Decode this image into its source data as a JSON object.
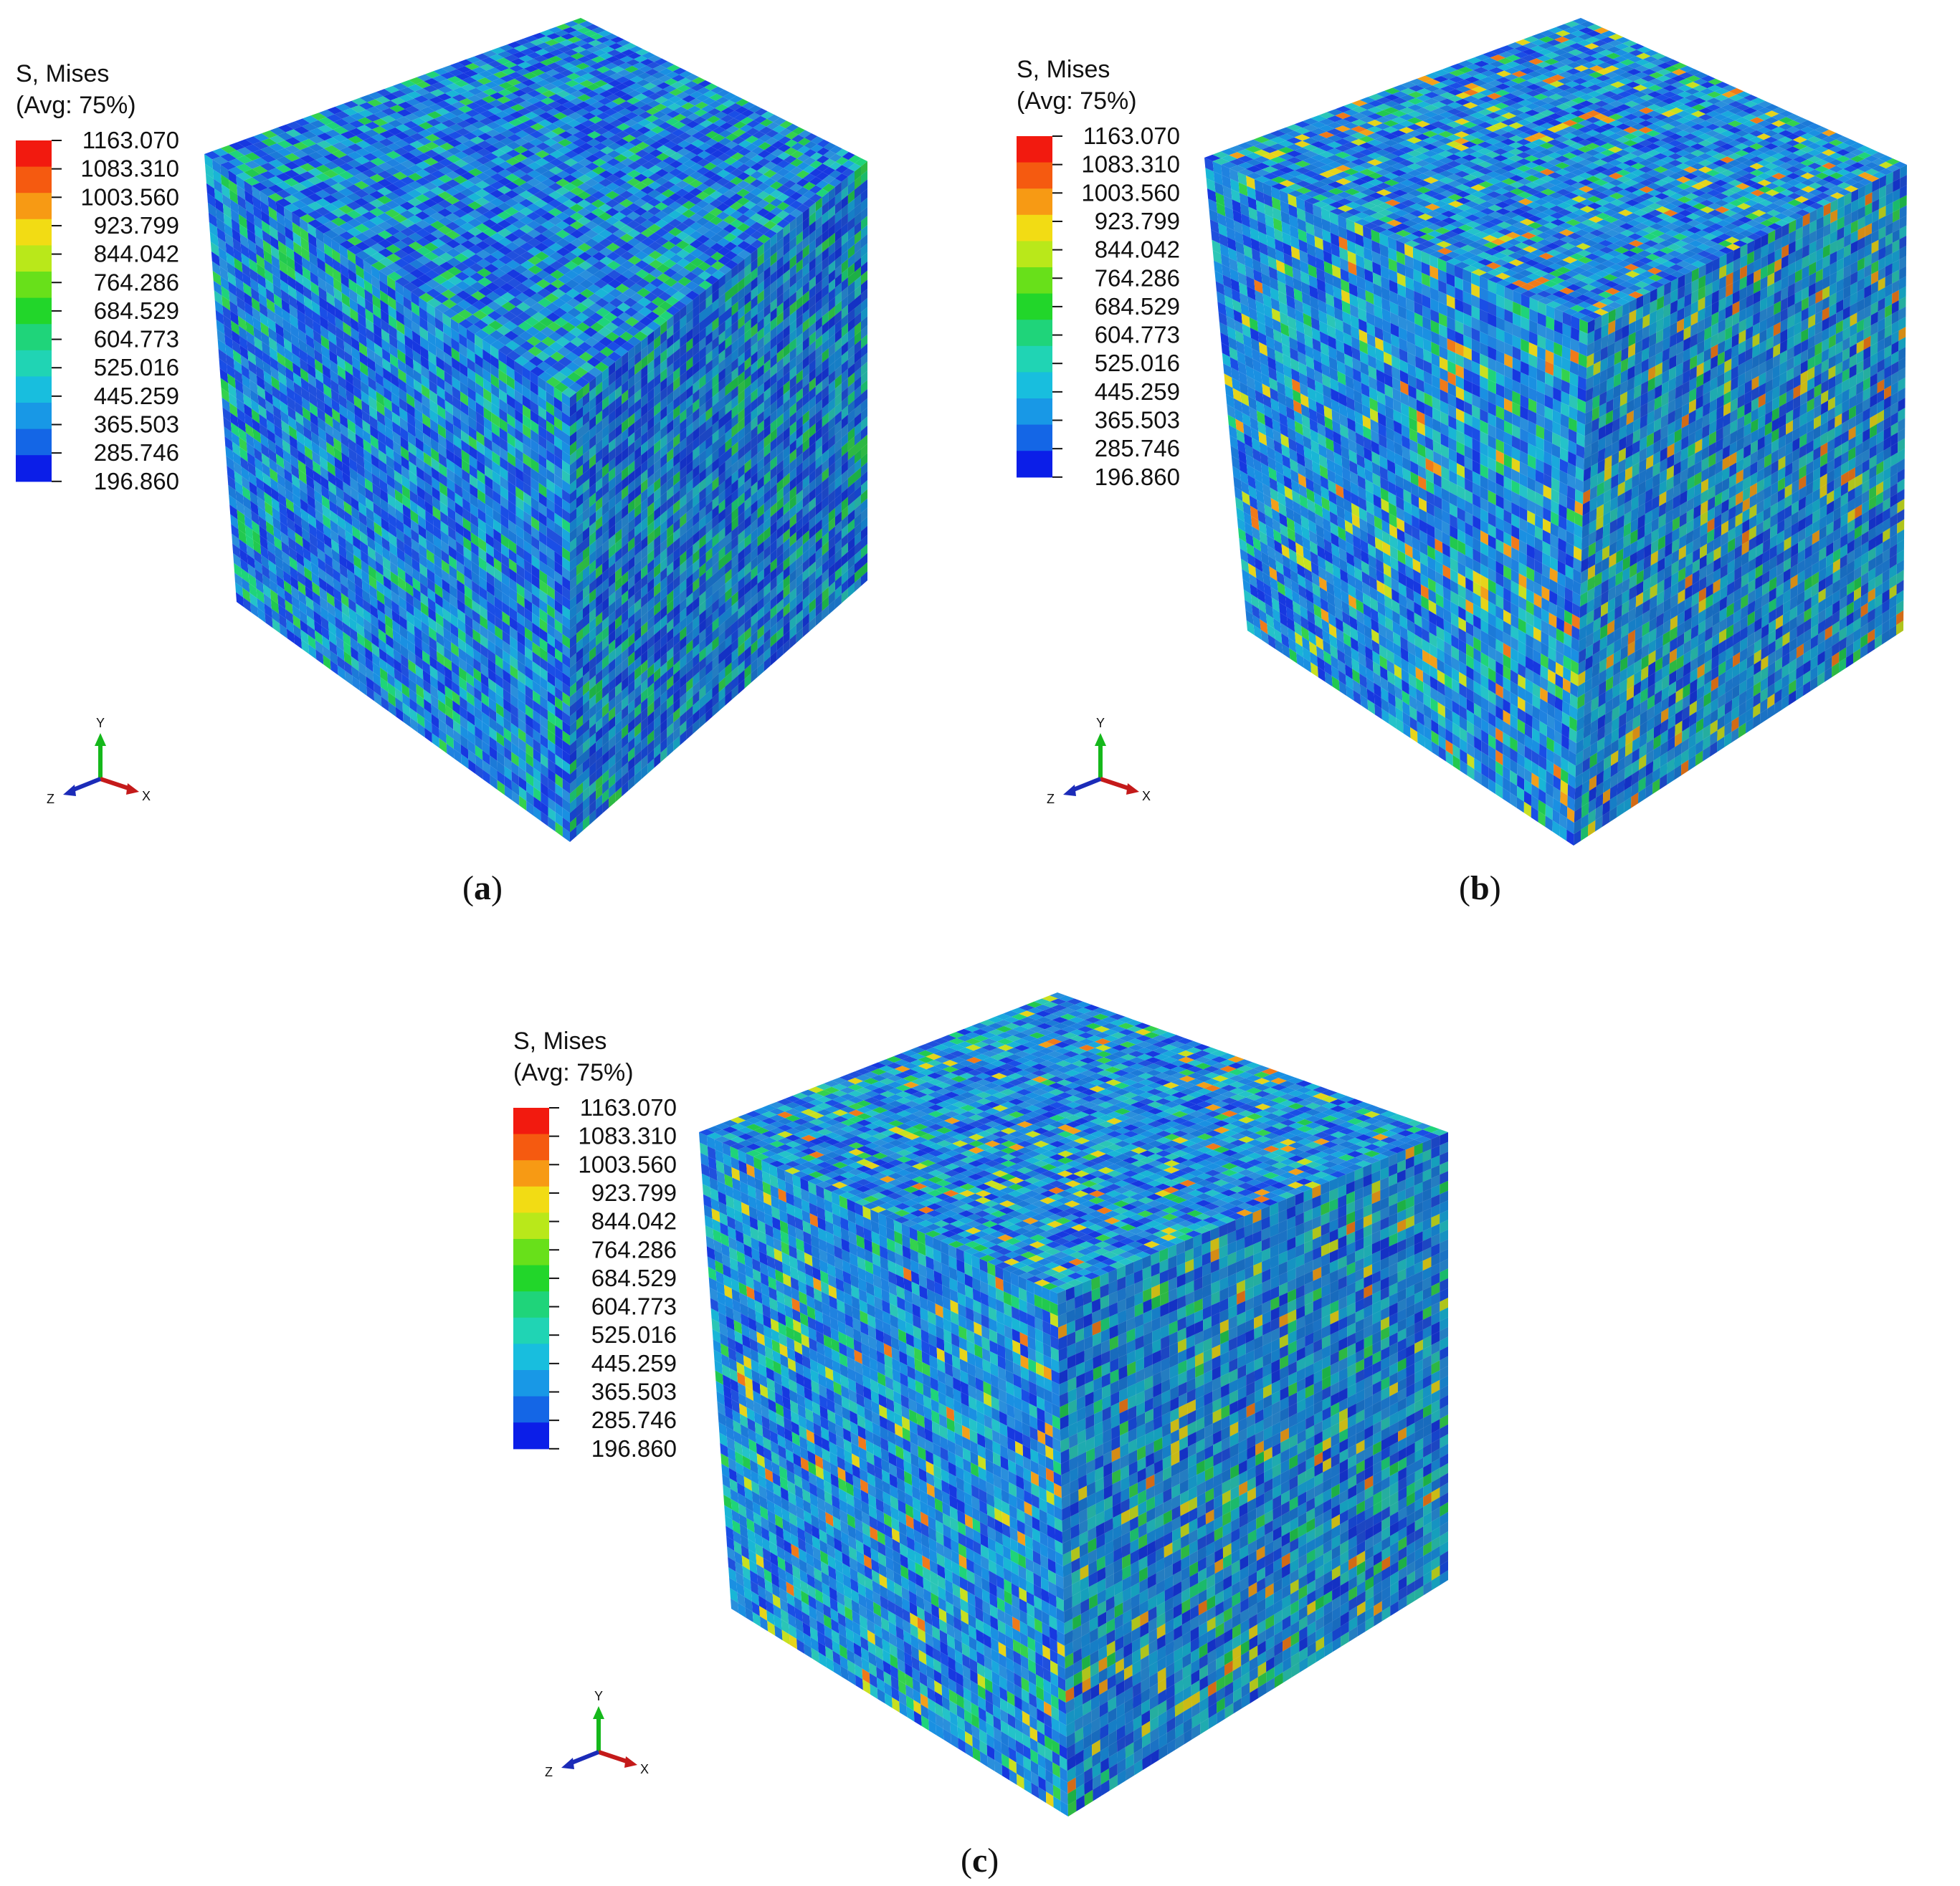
{
  "legend": {
    "title_line1": "S, Mises",
    "title_line2": "(Avg: 75%)",
    "values": [
      "1163.070",
      "1083.310",
      "1003.560",
      "923.799",
      "844.042",
      "764.286",
      "684.529",
      "604.773",
      "525.016",
      "445.259",
      "365.503",
      "285.746",
      "196.860"
    ],
    "colors": [
      "#f21a0f",
      "#f55a10",
      "#f79a14",
      "#f2dc14",
      "#b9e81a",
      "#68e01a",
      "#22d62a",
      "#1fd47a",
      "#20d4b4",
      "#18bede",
      "#1898e6",
      "#1466e6",
      "#0b1ee8"
    ]
  },
  "triad": {
    "y": "Y",
    "x": "X",
    "z": "Z",
    "colors": {
      "y": "#15b81b",
      "x": "#c41a1a",
      "z": "#1b2bb8"
    }
  },
  "panels": [
    {
      "label_open": "(",
      "label_letter": "a",
      "label_close": ")",
      "mix": {
        "blue": 0.34,
        "mid": 0.36,
        "cyan": 0.14,
        "green": 0.16,
        "yellow": 0.0,
        "orange": 0.0
      }
    },
    {
      "label_open": "(",
      "label_letter": "b",
      "label_close": ")",
      "mix": {
        "blue": 0.2,
        "mid": 0.4,
        "cyan": 0.25,
        "green": 0.07,
        "yellow": 0.05,
        "orange": 0.03
      }
    },
    {
      "label_open": "(",
      "label_letter": "c",
      "label_close": ")",
      "mix": {
        "blue": 0.2,
        "mid": 0.42,
        "cyan": 0.25,
        "green": 0.07,
        "yellow": 0.04,
        "orange": 0.02
      }
    }
  ]
}
